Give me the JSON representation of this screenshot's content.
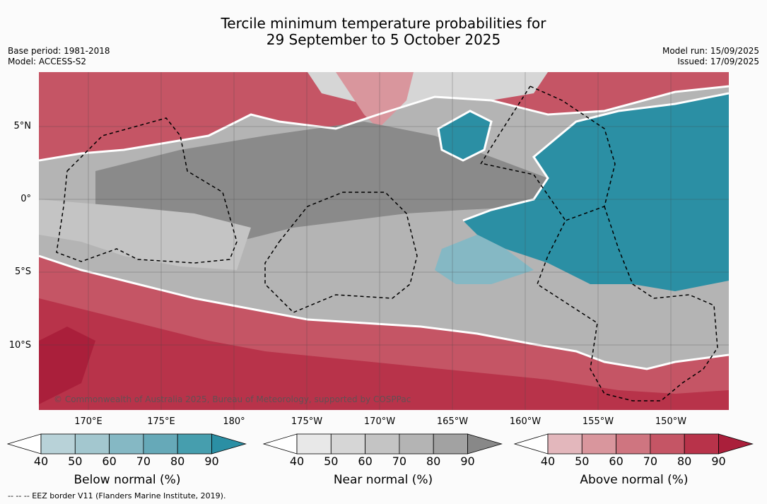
{
  "title": {
    "line1": "Tercile minimum temperature probabilities for",
    "line2": "29 September to 5 October 2025"
  },
  "meta": {
    "base_period": "Base period: 1981-2018",
    "model": "Model: ACCESS-S2",
    "model_run": "Model run: 15/09/2025",
    "issued": "Issued: 17/09/2025"
  },
  "map": {
    "lat_labels": [
      "5°N",
      "0°",
      "5°S",
      "10°S"
    ],
    "lon_labels": [
      "170°E",
      "175°E",
      "180°",
      "175°W",
      "170°W",
      "165°W",
      "160°W",
      "155°W",
      "150°W"
    ],
    "copyright": "© Commonwealth of Australia 2025, Bureau of Meteorology, supported by COSPPac"
  },
  "colorbars": [
    {
      "title": "Below normal (%)",
      "ticks": [
        "40",
        "50",
        "60",
        "70",
        "80",
        "90"
      ],
      "colors": [
        "#ffffff",
        "#b8d2d8",
        "#a3c7cf",
        "#85b8c4",
        "#66a9b8",
        "#469eae",
        "#2b8fa4"
      ]
    },
    {
      "title": "Near normal (%)",
      "ticks": [
        "40",
        "50",
        "60",
        "70",
        "80",
        "90"
      ],
      "colors": [
        "#ffffff",
        "#e8e8e8",
        "#d6d6d6",
        "#c4c4c4",
        "#b4b4b4",
        "#a2a2a2",
        "#888888"
      ]
    },
    {
      "title": "Above normal (%)",
      "ticks": [
        "40",
        "50",
        "60",
        "70",
        "80",
        "90"
      ],
      "colors": [
        "#ffffff",
        "#e3b7bc",
        "#d9969d",
        "#cf7580",
        "#c55565",
        "#b8334a",
        "#aa1f3b"
      ]
    }
  ],
  "legend_note": "--  --  -- EEZ border V11 (Flanders Marine Institute, 2019)."
}
